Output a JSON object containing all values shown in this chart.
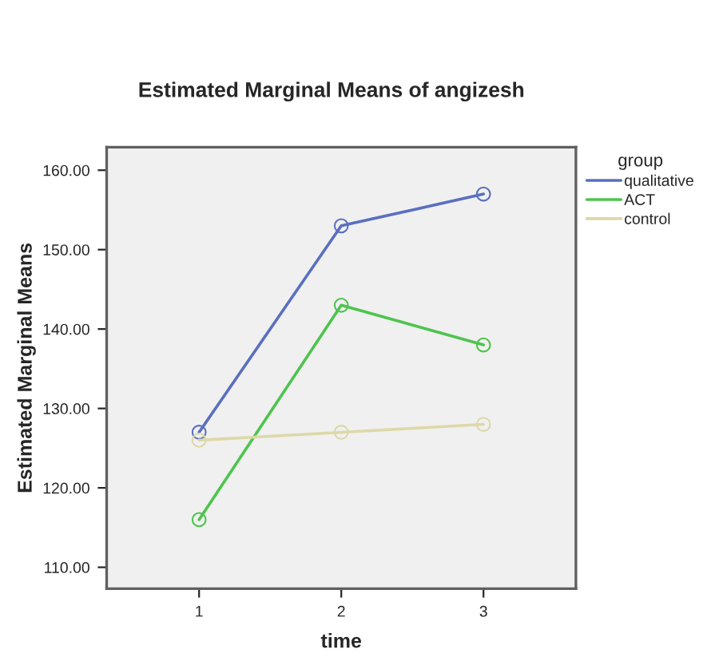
{
  "chart_data": {
    "type": "line",
    "title": "Estimated Marginal Means of angizesh",
    "xlabel": "time",
    "ylabel": "Estimated Marginal Means",
    "legend_title": "group",
    "x": [
      1,
      2,
      3
    ],
    "series": [
      {
        "name": "qualitative",
        "color": "#5a6fbf",
        "values": [
          127,
          153,
          157
        ]
      },
      {
        "name": "ACT",
        "color": "#4ec44e",
        "values": [
          116,
          143,
          138
        ]
      },
      {
        "name": "control",
        "color": "#ddd8a8",
        "values": [
          126,
          127,
          128
        ]
      }
    ],
    "xlim": [
      0.35,
      3.65
    ],
    "xticks": [
      1,
      2,
      3
    ],
    "ylim": [
      107.3,
      162.9
    ],
    "yticks": [
      {
        "value": 110,
        "label": "110.00"
      },
      {
        "value": 120,
        "label": "120.00"
      },
      {
        "value": 130,
        "label": "130.00"
      },
      {
        "value": 140,
        "label": "140.00"
      },
      {
        "value": 150,
        "label": "150.00"
      },
      {
        "value": 160,
        "label": "160.00"
      }
    ],
    "marker": "circle",
    "line_style": "solid",
    "grid": false,
    "legend": "top right"
  }
}
